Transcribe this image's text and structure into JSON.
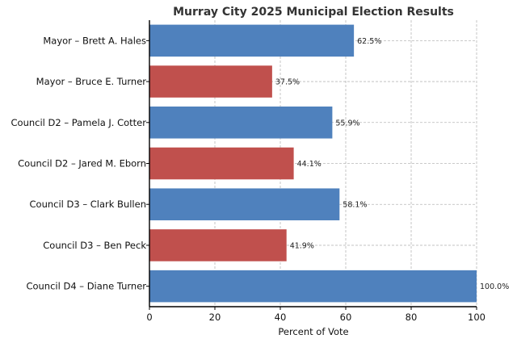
{
  "chart_data": {
    "type": "bar",
    "orientation": "horizontal",
    "title": "Murray City 2025 Municipal Election Results",
    "xlabel": "Percent of Vote",
    "ylabel": "",
    "xlim": [
      0,
      100
    ],
    "xticks": [
      0,
      20,
      40,
      60,
      80,
      100
    ],
    "grid": true,
    "categories": [
      "Mayor – Brett A. Hales",
      "Mayor – Bruce E. Turner",
      "Council D2 – Pamela J. Cotter",
      "Council D2 – Jared M. Eborn",
      "Council D3 – Clark Bullen",
      "Council D3 – Ben Peck",
      "Council D4 – Diane Turner"
    ],
    "values": [
      62.5,
      37.5,
      55.9,
      44.1,
      58.1,
      41.9,
      100.0
    ],
    "value_labels": [
      "62.5%",
      "37.5%",
      "55.9%",
      "44.1%",
      "58.1%",
      "41.9%",
      "100.0%"
    ],
    "bar_colors": [
      "#4f81bd",
      "#c0504d",
      "#4f81bd",
      "#c0504d",
      "#4f81bd",
      "#c0504d",
      "#4f81bd"
    ]
  }
}
